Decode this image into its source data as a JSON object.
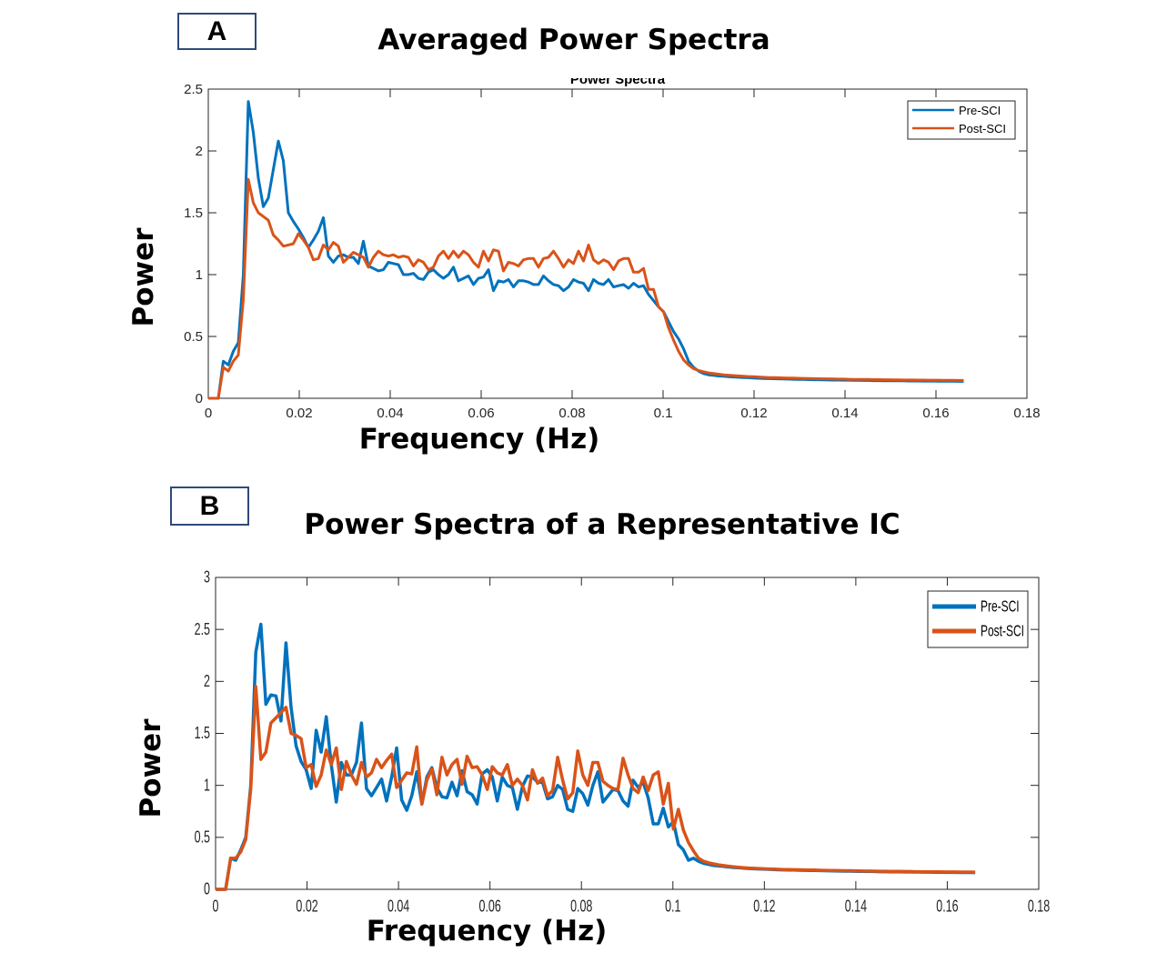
{
  "chart_data": [
    {
      "type": "line",
      "panel_label": "A",
      "title": "Averaged Power Spectra",
      "inner_title": "Power Spectra",
      "xlabel": "Frequency (Hz)",
      "ylabel": "Power",
      "xlim": [
        0,
        0.18
      ],
      "ylim": [
        0,
        2.5
      ],
      "xticks": [
        "0",
        "0.02",
        "0.04",
        "0.06",
        "0.08",
        "0.1",
        "0.12",
        "0.14",
        "0.16",
        "0.18"
      ],
      "yticks": [
        "0",
        "0.5",
        "1",
        "1.5",
        "2",
        "2.5"
      ],
      "legend_position": "top-right",
      "x_start": 0,
      "x_step": 0.0011,
      "series": [
        {
          "name": "Pre-SCI",
          "color": "#0072BD",
          "values": [
            0,
            0,
            0,
            0.3,
            0.27,
            0.38,
            0.45,
            1.0,
            2.4,
            2.15,
            1.78,
            1.55,
            1.62,
            1.85,
            2.08,
            1.92,
            1.5,
            1.43,
            1.37,
            1.3,
            1.22,
            1.28,
            1.35,
            1.46,
            1.15,
            1.1,
            1.15,
            1.16,
            1.14,
            1.14,
            1.09,
            1.27,
            1.07,
            1.05,
            1.03,
            1.04,
            1.1,
            1.09,
            1.08,
            1.0,
            1.0,
            1.01,
            0.97,
            0.96,
            1.02,
            1.04,
            1.0,
            0.97,
            1.0,
            1.06,
            0.95,
            0.97,
            0.99,
            0.92,
            0.97,
            0.98,
            1.04,
            0.87,
            0.95,
            0.94,
            0.96,
            0.9,
            0.95,
            0.95,
            0.94,
            0.92,
            0.92,
            0.99,
            0.95,
            0.92,
            0.91,
            0.87,
            0.9,
            0.96,
            0.94,
            0.93,
            0.87,
            0.96,
            0.93,
            0.92,
            0.96,
            0.9,
            0.91,
            0.92,
            0.89,
            0.93,
            0.9,
            0.91,
            0.84,
            0.79,
            0.74,
            0.7,
            0.62,
            0.54,
            0.48,
            0.4,
            0.3,
            0.25,
            0.22,
            0.2,
            0.19,
            0.185,
            0.18,
            0.178,
            0.175,
            0.172,
            0.17,
            0.168,
            0.166,
            0.164,
            0.162,
            0.16,
            0.159,
            0.158,
            0.157,
            0.156,
            0.155,
            0.154,
            0.153,
            0.152,
            0.151,
            0.15,
            0.15,
            0.149,
            0.148,
            0.147,
            0.147,
            0.146,
            0.146,
            0.145,
            0.145,
            0.144,
            0.144,
            0.143,
            0.143,
            0.142,
            0.142,
            0.141,
            0.141,
            0.141,
            0.14,
            0.14,
            0.14,
            0.139,
            0.139,
            0.139,
            0.138,
            0.138,
            0.138,
            0.138,
            0.137,
            0.137
          ]
        },
        {
          "name": "Post-SCI",
          "color": "#D95319",
          "values": [
            0,
            0,
            0,
            0.25,
            0.22,
            0.3,
            0.35,
            0.8,
            1.77,
            1.58,
            1.5,
            1.47,
            1.44,
            1.32,
            1.28,
            1.23,
            1.24,
            1.25,
            1.33,
            1.28,
            1.22,
            1.12,
            1.13,
            1.24,
            1.2,
            1.26,
            1.23,
            1.1,
            1.14,
            1.18,
            1.16,
            1.14,
            1.06,
            1.14,
            1.19,
            1.16,
            1.15,
            1.16,
            1.14,
            1.15,
            1.14,
            1.07,
            1.12,
            1.1,
            1.04,
            1.06,
            1.15,
            1.19,
            1.13,
            1.19,
            1.14,
            1.19,
            1.16,
            1.1,
            1.06,
            1.19,
            1.11,
            1.2,
            1.19,
            1.03,
            1.1,
            1.09,
            1.07,
            1.12,
            1.13,
            1.13,
            1.06,
            1.13,
            1.14,
            1.19,
            1.13,
            1.06,
            1.12,
            1.09,
            1.19,
            1.11,
            1.24,
            1.12,
            1.09,
            1.12,
            1.1,
            1.04,
            1.11,
            1.13,
            1.13,
            1.02,
            1.02,
            1.05,
            0.88,
            0.88,
            0.74,
            0.7,
            0.57,
            0.47,
            0.38,
            0.31,
            0.27,
            0.24,
            0.225,
            0.215,
            0.205,
            0.2,
            0.195,
            0.19,
            0.187,
            0.184,
            0.181,
            0.178,
            0.176,
            0.174,
            0.172,
            0.17,
            0.168,
            0.167,
            0.166,
            0.165,
            0.164,
            0.163,
            0.162,
            0.161,
            0.16,
            0.159,
            0.158,
            0.157,
            0.157,
            0.156,
            0.155,
            0.155,
            0.154,
            0.153,
            0.153,
            0.152,
            0.152,
            0.151,
            0.151,
            0.15,
            0.15,
            0.149,
            0.149,
            0.148,
            0.148,
            0.148,
            0.147,
            0.147,
            0.146,
            0.146,
            0.146,
            0.145,
            0.145,
            0.145,
            0.144,
            0.144
          ]
        }
      ]
    },
    {
      "type": "line",
      "panel_label": "B",
      "title": "Power Spectra of a Representative IC",
      "xlabel": "Frequency (Hz)",
      "ylabel": "Power",
      "xlim": [
        0,
        0.18
      ],
      "ylim": [
        0,
        3
      ],
      "xticks": [
        "0",
        "0.02",
        "0.04",
        "0.06",
        "0.08",
        "0.1",
        "0.12",
        "0.14",
        "0.16",
        "0.18"
      ],
      "yticks": [
        "0",
        "0.5",
        "1",
        "1.5",
        "2",
        "2.5",
        "3"
      ],
      "legend_position": "top-right",
      "x_start": 0,
      "x_step": 0.0011,
      "series": [
        {
          "name": "Pre-SCI",
          "color": "#0072BD",
          "values": [
            0,
            0,
            0,
            0.3,
            0.28,
            0.38,
            0.5,
            1.0,
            2.28,
            2.55,
            1.78,
            1.87,
            1.86,
            1.62,
            2.37,
            1.75,
            1.38,
            1.23,
            1.15,
            0.97,
            1.53,
            1.32,
            1.66,
            1.2,
            0.84,
            1.22,
            1.1,
            1.1,
            1.22,
            1.6,
            0.97,
            0.9,
            0.98,
            1.06,
            0.85,
            1.08,
            1.36,
            0.86,
            0.76,
            0.9,
            1.13,
            0.82,
            1.08,
            1.17,
            0.98,
            0.89,
            0.88,
            1.03,
            0.9,
            1.14,
            0.94,
            0.91,
            0.82,
            1.11,
            1.15,
            1.08,
            0.85,
            1.08,
            1.0,
            0.98,
            0.77,
            0.99,
            1.09,
            1.08,
            1.03,
            1.03,
            0.87,
            0.89,
            1.0,
            0.96,
            0.77,
            0.75,
            0.97,
            0.92,
            0.81,
            1.0,
            1.13,
            0.84,
            0.9,
            0.96,
            0.95,
            0.85,
            0.8,
            1.05,
            0.98,
            1.03,
            0.88,
            0.63,
            0.63,
            0.78,
            0.6,
            0.65,
            0.43,
            0.38,
            0.28,
            0.3,
            0.27,
            0.25,
            0.24,
            0.23,
            0.225,
            0.22,
            0.215,
            0.21,
            0.207,
            0.204,
            0.2,
            0.198,
            0.196,
            0.194,
            0.192,
            0.19,
            0.188,
            0.187,
            0.186,
            0.185,
            0.184,
            0.183,
            0.182,
            0.181,
            0.18,
            0.179,
            0.178,
            0.177,
            0.176,
            0.175,
            0.175,
            0.174,
            0.173,
            0.172,
            0.172,
            0.171,
            0.17,
            0.17,
            0.169,
            0.168,
            0.168,
            0.167,
            0.167,
            0.166,
            0.166,
            0.165,
            0.165,
            0.164,
            0.164,
            0.163,
            0.163,
            0.163,
            0.162,
            0.162,
            0.162,
            0.161
          ]
        },
        {
          "name": "Post-SCI",
          "color": "#D95319",
          "values": [
            0,
            0,
            0,
            0.3,
            0.3,
            0.36,
            0.48,
            0.97,
            1.95,
            1.25,
            1.32,
            1.6,
            1.65,
            1.7,
            1.75,
            1.5,
            1.48,
            1.45,
            1.17,
            1.2,
            0.99,
            1.1,
            1.34,
            1.2,
            1.36,
            0.96,
            1.23,
            1.1,
            1.01,
            1.22,
            1.08,
            1.12,
            1.25,
            1.17,
            1.24,
            1.3,
            0.98,
            1.05,
            1.12,
            1.11,
            1.37,
            0.82,
            1.05,
            1.16,
            0.91,
            1.27,
            1.1,
            1.2,
            1.25,
            1.01,
            1.28,
            1.17,
            1.18,
            1.1,
            0.96,
            1.18,
            1.12,
            1.1,
            1.2,
            1.0,
            1.06,
            1.0,
            0.86,
            1.15,
            1.02,
            1.07,
            0.9,
            0.95,
            1.27,
            1.05,
            0.87,
            0.93,
            1.33,
            1.1,
            1.0,
            1.22,
            1.22,
            1.04,
            1.0,
            0.97,
            0.96,
            1.26,
            1.1,
            0.97,
            0.93,
            1.08,
            0.95,
            1.1,
            1.13,
            0.82,
            1.02,
            0.58,
            0.77,
            0.57,
            0.45,
            0.37,
            0.3,
            0.27,
            0.255,
            0.245,
            0.235,
            0.228,
            0.222,
            0.217,
            0.212,
            0.208,
            0.205,
            0.202,
            0.2,
            0.198,
            0.196,
            0.194,
            0.192,
            0.191,
            0.19,
            0.189,
            0.188,
            0.187,
            0.186,
            0.185,
            0.184,
            0.183,
            0.182,
            0.181,
            0.18,
            0.179,
            0.179,
            0.178,
            0.177,
            0.176,
            0.176,
            0.175,
            0.174,
            0.174,
            0.173,
            0.172,
            0.172,
            0.171,
            0.171,
            0.17,
            0.17,
            0.169,
            0.169,
            0.168,
            0.168,
            0.167,
            0.167,
            0.167,
            0.166,
            0.166,
            0.166,
            0.165
          ]
        }
      ]
    }
  ]
}
